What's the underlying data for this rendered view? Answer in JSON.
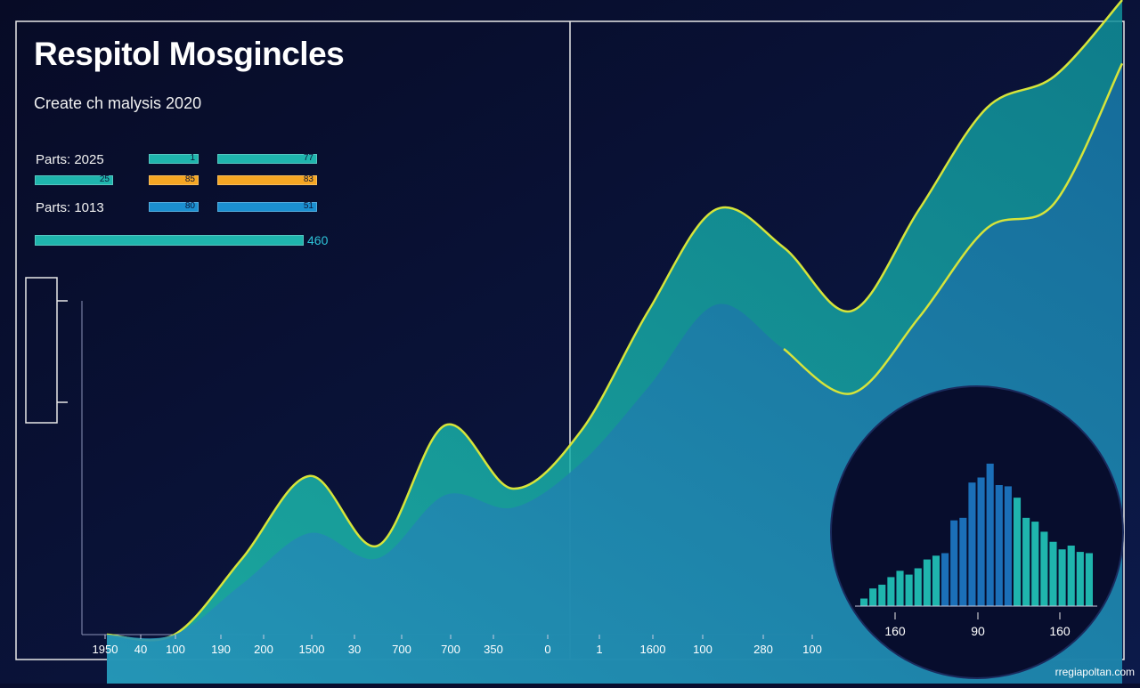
{
  "header": {
    "title": "Respitol Mosgincles",
    "subtitle": "Create ch malysis 2020"
  },
  "summary": {
    "rows": [
      {
        "label": "Parts: 2025",
        "bars": [
          {
            "value": "1",
            "color": "#1fb5ad"
          },
          {
            "value": "77",
            "color": "#1fb5ad"
          }
        ]
      },
      {
        "label": "",
        "bars": [
          {
            "value": "25",
            "color": "#1fb5ad"
          },
          {
            "value": "85",
            "color": "#f5a623"
          },
          {
            "value": "83",
            "color": "#f5a623"
          }
        ]
      },
      {
        "label": "Parts: 1013",
        "bars": [
          {
            "value": "80",
            "color": "#1b8fd0"
          },
          {
            "value": "51",
            "color": "#1b8fd0"
          }
        ]
      }
    ],
    "total": {
      "value": "460",
      "color": "#1fb5ad"
    }
  },
  "chart_data": [
    {
      "type": "area",
      "title": "",
      "xlabel": "",
      "ylabel": "",
      "grid": false,
      "x_tick_labels": [
        "1950",
        "40",
        "100",
        "190",
        "200",
        "1500",
        "30",
        "700",
        "700",
        "350",
        "0",
        "1",
        "1600",
        "100",
        "280",
        "100"
      ],
      "ylim": [
        0,
        100
      ],
      "series": [
        {
          "values": [
            0,
            0,
            12,
            25,
            14,
            33,
            23,
            32,
            51,
            67,
            61,
            51,
            67,
            83,
            88,
            100
          ],
          "color": "#16a6a4"
        },
        {
          "values": [
            0,
            0,
            8,
            16,
            12,
            22,
            20,
            27,
            39,
            52,
            45,
            38,
            50,
            64,
            68,
            90
          ],
          "color": "#1e7fb0"
        }
      ],
      "colors": {
        "accent_line": "#d6e43a",
        "fill_1": "#16a6a4",
        "fill_2": "#1e7fb0"
      }
    },
    {
      "type": "bar",
      "title": "",
      "x_tick_labels": [
        "160",
        "90",
        "160"
      ],
      "values": [
        6,
        14,
        17,
        23,
        28,
        25,
        30,
        37,
        40,
        42,
        68,
        70,
        98,
        102,
        113,
        96,
        95,
        86,
        70,
        67,
        59,
        51,
        45,
        48,
        43,
        42
      ],
      "ylim": [
        0,
        120
      ],
      "colors": {
        "bar": "#1fb5ad",
        "bar_alt": "#1b6fb8",
        "background": "#070d2d"
      }
    }
  ],
  "footer": {
    "credit": "rregiapoltan.com"
  }
}
